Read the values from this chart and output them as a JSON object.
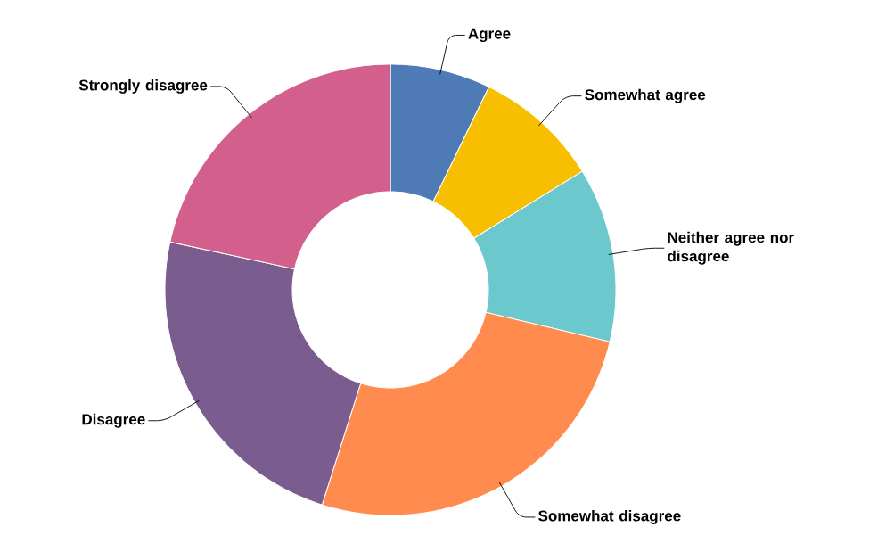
{
  "chart_data": {
    "type": "donut",
    "categories": [
      "Agree",
      "Somewhat agree",
      "Neither agree nor disagree",
      "Somewhat disagree",
      "Disagree",
      "Strongly disagree"
    ],
    "values": [
      7.2,
      9.0,
      12.5,
      26.2,
      23.5,
      21.6
    ],
    "colors": [
      "#4e7ab5",
      "#f8bf00",
      "#6bc8cc",
      "#ff8b4f",
      "#7b5c8e",
      "#d35f8d"
    ]
  }
}
